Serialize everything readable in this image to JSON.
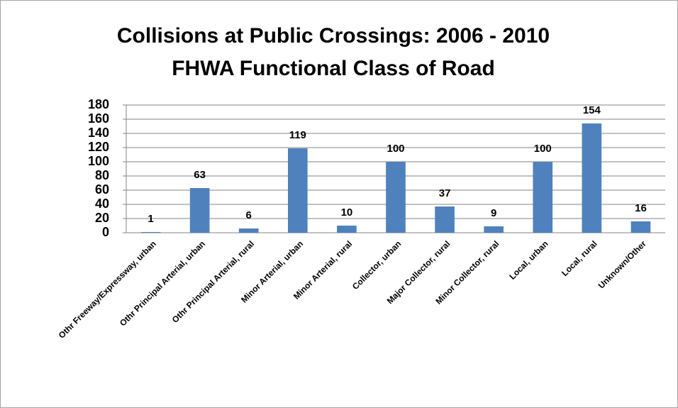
{
  "chart_data": {
    "type": "bar",
    "title": "Collisions at Public Crossings:  2006 - 2010",
    "subtitle": "FHWA Functional Class of Road",
    "categories": [
      "Othr Freeway/Expressway,  urban",
      "Othr Principal  Arterial,  urban",
      "Othr Principal  Arterial,  rural",
      "Minor Arterial,  urban",
      "Minor Arterial,  rural",
      "Collector, urban",
      "Major Collector, rural",
      "Minor Collector, rural",
      "Local, urban",
      "Local, rural",
      "Unknown/Other"
    ],
    "values": [
      1,
      63,
      6,
      119,
      10,
      100,
      37,
      9,
      100,
      154,
      16
    ],
    "color": "#4f81bd",
    "ylim": [
      0,
      180
    ],
    "yticks": [
      0,
      20,
      40,
      60,
      80,
      100,
      120,
      140,
      160,
      180
    ],
    "grid": true
  }
}
